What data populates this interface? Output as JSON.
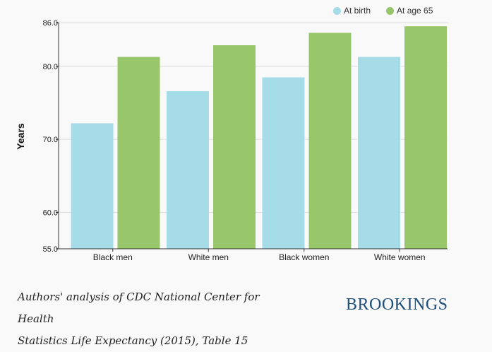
{
  "chart_data": {
    "type": "bar",
    "title": "",
    "xlabel": "",
    "ylabel": "Years",
    "ylim": [
      55,
      86
    ],
    "yticks": [
      55,
      60,
      70,
      80,
      86
    ],
    "ytick_labels": [
      "55.0",
      "60.0",
      "70.0",
      "80.0",
      "86.0"
    ],
    "categories": [
      "Black men",
      "White men",
      "Black women",
      "White women"
    ],
    "series": [
      {
        "name": "At birth",
        "color": "#a6dbe8",
        "values": [
          72.2,
          76.6,
          78.5,
          81.3
        ]
      },
      {
        "name": "At age 65",
        "color": "#97c76a",
        "values": [
          81.3,
          82.9,
          84.6,
          85.5
        ]
      }
    ],
    "legend_position": "top-right",
    "grid": true
  },
  "footer": {
    "source_line1": "Authors' analysis of CDC National Center for Health",
    "source_line2": "Statistics Life Expectancy (2015), Table 15",
    "brand": "BROOKINGS",
    "brand_color": "#1f4e7a"
  }
}
